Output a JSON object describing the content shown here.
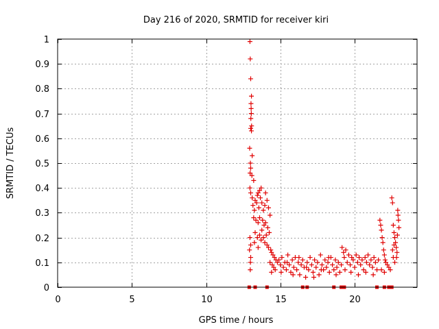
{
  "chart_data": {
    "type": "scatter",
    "title": "Day 216 of 2020, SRMTID for receiver kiri",
    "xlabel": "GPS time / hours",
    "ylabel": "SRMTID / TECUs",
    "xlim": [
      0,
      24.2
    ],
    "ylim": [
      0,
      1
    ],
    "xticks": [
      0,
      5,
      10,
      15,
      20
    ],
    "xtick_labels": [
      "0",
      "5",
      "10",
      "15",
      "20"
    ],
    "yticks": [
      0,
      0.1,
      0.2,
      0.3,
      0.4,
      0.5,
      0.6,
      0.7,
      0.8,
      0.9,
      1
    ],
    "ytick_labels": [
      "0",
      "0.1",
      "0.2",
      "0.3",
      "0.4",
      "0.5",
      "0.6",
      "0.7",
      "0.8",
      "0.9",
      "1"
    ],
    "grid": true,
    "marker": "+",
    "color": "#e00000",
    "series": [
      {
        "name": "kiri",
        "points": [
          [
            12.95,
            0.99
          ],
          [
            12.97,
            0.92
          ],
          [
            13.0,
            0.84
          ],
          [
            13.05,
            0.77
          ],
          [
            13.02,
            0.74
          ],
          [
            13.03,
            0.72
          ],
          [
            13.04,
            0.7
          ],
          [
            13.01,
            0.68
          ],
          [
            13.06,
            0.65
          ],
          [
            13.0,
            0.64
          ],
          [
            13.05,
            0.63
          ],
          [
            12.93,
            0.56
          ],
          [
            13.1,
            0.53
          ],
          [
            12.98,
            0.5
          ],
          [
            13.0,
            0.48
          ],
          [
            12.96,
            0.46
          ],
          [
            13.08,
            0.45
          ],
          [
            13.2,
            0.43
          ],
          [
            12.95,
            0.4
          ],
          [
            13.0,
            0.38
          ],
          [
            13.1,
            0.36
          ],
          [
            13.3,
            0.35
          ],
          [
            13.5,
            0.38
          ],
          [
            13.6,
            0.39
          ],
          [
            13.7,
            0.4
          ],
          [
            13.45,
            0.37
          ],
          [
            13.15,
            0.33
          ],
          [
            13.25,
            0.31
          ],
          [
            13.4,
            0.34
          ],
          [
            13.55,
            0.32
          ],
          [
            13.65,
            0.36
          ],
          [
            13.75,
            0.34
          ],
          [
            13.85,
            0.31
          ],
          [
            13.95,
            0.33
          ],
          [
            14.0,
            0.38
          ],
          [
            14.1,
            0.35
          ],
          [
            14.2,
            0.32
          ],
          [
            14.3,
            0.29
          ],
          [
            13.2,
            0.28
          ],
          [
            13.35,
            0.27
          ],
          [
            13.5,
            0.26
          ],
          [
            13.6,
            0.28
          ],
          [
            13.8,
            0.27
          ],
          [
            13.9,
            0.25
          ],
          [
            14.0,
            0.26
          ],
          [
            14.15,
            0.24
          ],
          [
            14.25,
            0.22
          ],
          [
            13.3,
            0.22
          ],
          [
            13.45,
            0.2
          ],
          [
            13.6,
            0.21
          ],
          [
            13.7,
            0.19
          ],
          [
            13.85,
            0.2
          ],
          [
            13.95,
            0.18
          ],
          [
            14.1,
            0.17
          ],
          [
            14.2,
            0.16
          ],
          [
            14.35,
            0.15
          ],
          [
            13.25,
            0.18
          ],
          [
            13.5,
            0.16
          ],
          [
            13.75,
            0.23
          ],
          [
            14.05,
            0.21
          ],
          [
            12.95,
            0.2
          ],
          [
            13.0,
            0.17
          ],
          [
            12.92,
            0.15
          ],
          [
            13.0,
            0.12
          ],
          [
            12.98,
            0.1
          ],
          [
            12.97,
            0.07
          ],
          [
            14.4,
            0.14
          ],
          [
            14.5,
            0.13
          ],
          [
            14.6,
            0.12
          ],
          [
            14.7,
            0.11
          ],
          [
            14.8,
            0.1
          ],
          [
            14.45,
            0.09
          ],
          [
            14.55,
            0.08
          ],
          [
            14.65,
            0.07
          ],
          [
            14.3,
            0.1
          ],
          [
            14.4,
            0.06
          ],
          [
            14.9,
            0.11
          ],
          [
            15.0,
            0.09
          ],
          [
            15.1,
            0.12
          ],
          [
            15.2,
            0.08
          ],
          [
            15.3,
            0.1
          ],
          [
            15.4,
            0.07
          ],
          [
            15.5,
            0.13
          ],
          [
            15.6,
            0.09
          ],
          [
            15.7,
            0.06
          ],
          [
            15.8,
            0.11
          ],
          [
            15.9,
            0.08
          ],
          [
            16.0,
            0.12
          ],
          [
            16.1,
            0.07
          ],
          [
            16.2,
            0.1
          ],
          [
            16.3,
            0.05
          ],
          [
            16.4,
            0.09
          ],
          [
            16.5,
            0.11
          ],
          [
            16.6,
            0.08
          ],
          [
            16.7,
            0.04
          ],
          [
            16.8,
            0.1
          ],
          [
            16.9,
            0.07
          ],
          [
            17.0,
            0.12
          ],
          [
            17.1,
            0.09
          ],
          [
            17.2,
            0.06
          ],
          [
            17.3,
            0.11
          ],
          [
            17.4,
            0.08
          ],
          [
            17.5,
            0.1
          ],
          [
            17.6,
            0.05
          ],
          [
            17.7,
            0.13
          ],
          [
            17.8,
            0.09
          ],
          [
            17.9,
            0.07
          ],
          [
            18.0,
            0.11
          ],
          [
            18.1,
            0.08
          ],
          [
            18.2,
            0.1
          ],
          [
            18.3,
            0.06
          ],
          [
            18.4,
            0.12
          ],
          [
            18.5,
            0.09
          ],
          [
            18.6,
            0.07
          ],
          [
            18.7,
            0.11
          ],
          [
            18.8,
            0.08
          ],
          [
            18.9,
            0.1
          ],
          [
            19.0,
            0.06
          ],
          [
            19.1,
            0.09
          ],
          [
            15.05,
            0.06
          ],
          [
            15.45,
            0.1
          ],
          [
            15.85,
            0.05
          ],
          [
            16.25,
            0.12
          ],
          [
            16.75,
            0.08
          ],
          [
            17.25,
            0.04
          ],
          [
            17.75,
            0.07
          ],
          [
            18.25,
            0.12
          ],
          [
            18.75,
            0.05
          ],
          [
            19.15,
            0.16
          ],
          [
            19.25,
            0.14
          ],
          [
            19.3,
            0.12
          ],
          [
            19.4,
            0.15
          ],
          [
            19.5,
            0.1
          ],
          [
            19.6,
            0.13
          ],
          [
            19.7,
            0.09
          ],
          [
            19.8,
            0.12
          ],
          [
            19.9,
            0.11
          ],
          [
            20.0,
            0.08
          ],
          [
            20.1,
            0.13
          ],
          [
            20.2,
            0.1
          ],
          [
            20.3,
            0.12
          ],
          [
            20.4,
            0.09
          ],
          [
            20.5,
            0.11
          ],
          [
            20.6,
            0.07
          ],
          [
            20.7,
            0.12
          ],
          [
            20.8,
            0.1
          ],
          [
            20.9,
            0.13
          ],
          [
            21.0,
            0.09
          ],
          [
            21.1,
            0.11
          ],
          [
            21.2,
            0.08
          ],
          [
            21.3,
            0.12
          ],
          [
            21.4,
            0.1
          ],
          [
            21.5,
            0.07
          ],
          [
            21.6,
            0.11
          ],
          [
            19.35,
            0.07
          ],
          [
            19.75,
            0.06
          ],
          [
            20.25,
            0.05
          ],
          [
            20.75,
            0.06
          ],
          [
            21.25,
            0.05
          ],
          [
            21.7,
            0.27
          ],
          [
            21.75,
            0.25
          ],
          [
            21.8,
            0.23
          ],
          [
            21.85,
            0.2
          ],
          [
            21.9,
            0.18
          ],
          [
            21.95,
            0.15
          ],
          [
            22.0,
            0.13
          ],
          [
            22.05,
            0.11
          ],
          [
            22.1,
            0.1
          ],
          [
            22.2,
            0.09
          ],
          [
            22.3,
            0.08
          ],
          [
            22.4,
            0.07
          ],
          [
            21.8,
            0.07
          ],
          [
            22.0,
            0.06
          ],
          [
            22.5,
            0.36
          ],
          [
            22.55,
            0.34
          ],
          [
            22.6,
            0.25
          ],
          [
            22.65,
            0.22
          ],
          [
            22.7,
            0.2
          ],
          [
            22.75,
            0.18
          ],
          [
            22.8,
            0.16
          ],
          [
            22.85,
            0.14
          ],
          [
            22.9,
            0.31
          ],
          [
            22.92,
            0.29
          ],
          [
            22.95,
            0.27
          ],
          [
            22.98,
            0.24
          ],
          [
            22.88,
            0.21
          ],
          [
            22.82,
            0.12
          ],
          [
            22.7,
            0.1
          ],
          [
            22.6,
            0.12
          ],
          [
            22.55,
            0.15
          ],
          [
            22.65,
            0.17
          ],
          [
            12.9,
            0.0
          ],
          [
            13.3,
            0.0
          ],
          [
            14.1,
            0.0
          ],
          [
            16.5,
            0.0
          ],
          [
            16.8,
            0.0
          ],
          [
            18.6,
            0.0
          ],
          [
            19.1,
            0.0
          ],
          [
            19.3,
            0.0
          ],
          [
            21.5,
            0.0
          ],
          [
            22.0,
            0.0
          ],
          [
            22.3,
            0.0
          ],
          [
            22.5,
            0.0
          ]
        ]
      }
    ]
  }
}
